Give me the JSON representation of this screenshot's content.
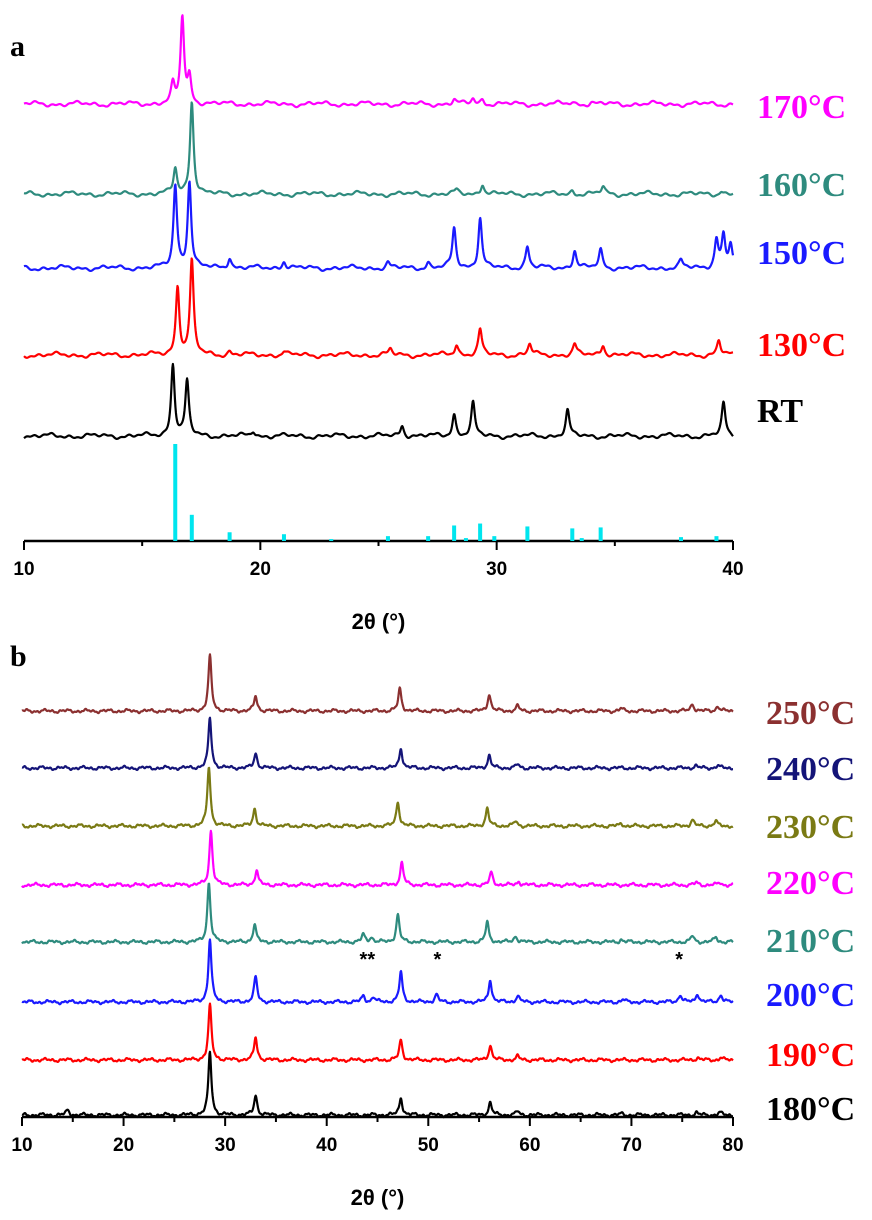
{
  "chart_data": [
    {
      "type": "line",
      "panel": "a",
      "xlabel": "2θ (°)",
      "xlim": [
        10,
        40
      ],
      "xticks": [
        10,
        20,
        30,
        40
      ],
      "yaxis": "none (stacked offset patterns)",
      "series": [
        {
          "name": "170°C",
          "color": "#ff00ff",
          "peaks": [
            [
              16.3,
              0.5
            ],
            [
              16.7,
              2.4
            ],
            [
              17.0,
              0.7
            ],
            [
              28.2,
              0.12
            ],
            [
              29.0,
              0.15
            ],
            [
              29.4,
              0.13
            ],
            [
              33.2,
              0.06
            ],
            [
              34.0,
              0.05
            ]
          ]
        },
        {
          "name": "160°C",
          "color": "#2e8b7e",
          "peaks": [
            [
              16.4,
              0.7
            ],
            [
              17.1,
              2.6
            ],
            [
              28.3,
              0.1
            ],
            [
              29.4,
              0.3
            ],
            [
              33.2,
              0.1
            ],
            [
              34.5,
              0.2
            ],
            [
              39.5,
              0.1
            ]
          ]
        },
        {
          "name": "150°C",
          "color": "#1a1aff",
          "peaks": [
            [
              16.4,
              2.3
            ],
            [
              17.0,
              2.4
            ],
            [
              18.7,
              0.3
            ],
            [
              21.0,
              0.2
            ],
            [
              25.4,
              0.15
            ],
            [
              27.1,
              0.15
            ],
            [
              28.2,
              1.1
            ],
            [
              29.3,
              1.4
            ],
            [
              31.3,
              0.6
            ],
            [
              33.3,
              0.5
            ],
            [
              34.4,
              0.5
            ],
            [
              37.8,
              0.2
            ],
            [
              39.3,
              0.8
            ],
            [
              39.6,
              0.9
            ],
            [
              39.9,
              0.6
            ]
          ]
        },
        {
          "name": "130°C",
          "color": "#ff0000",
          "peaks": [
            [
              16.5,
              1.9
            ],
            [
              17.1,
              2.6
            ],
            [
              18.7,
              0.1
            ],
            [
              21.0,
              0.1
            ],
            [
              25.5,
              0.15
            ],
            [
              28.3,
              0.3
            ],
            [
              29.3,
              0.7
            ],
            [
              31.4,
              0.3
            ],
            [
              33.3,
              0.3
            ],
            [
              34.5,
              0.3
            ],
            [
              39.4,
              0.4
            ]
          ]
        },
        {
          "name": "RT",
          "color": "#000000",
          "peaks": [
            [
              16.3,
              2.0
            ],
            [
              16.9,
              1.5
            ],
            [
              19.7,
              0.15
            ],
            [
              26.0,
              0.3
            ],
            [
              28.2,
              0.6
            ],
            [
              29.0,
              0.9
            ],
            [
              33.0,
              0.7
            ],
            [
              39.6,
              0.9
            ]
          ]
        }
      ],
      "reference_sticks": {
        "color": "#00e5ee",
        "positions": [
          16.4,
          17.1,
          18.7,
          21.0,
          23.0,
          25.4,
          27.1,
          28.2,
          28.7,
          29.3,
          29.9,
          31.3,
          33.2,
          33.6,
          34.4,
          37.8,
          39.3
        ],
        "heights": [
          1.0,
          0.27,
          0.09,
          0.07,
          0.02,
          0.05,
          0.05,
          0.16,
          0.03,
          0.18,
          0.05,
          0.15,
          0.13,
          0.03,
          0.14,
          0.04,
          0.05
        ]
      }
    },
    {
      "type": "line",
      "panel": "b",
      "xlabel": "2θ (°)",
      "xlim": [
        10,
        80
      ],
      "xticks": [
        10,
        20,
        30,
        40,
        50,
        60,
        70,
        80
      ],
      "yaxis": "none (stacked offset patterns)",
      "series": [
        {
          "name": "250°C",
          "color": "#8b3030",
          "peaks": [
            [
              28.5,
              2.2
            ],
            [
              33.0,
              0.6
            ],
            [
              47.2,
              0.9
            ],
            [
              56.0,
              0.7
            ],
            [
              58.8,
              0.2
            ],
            [
              69.0,
              0.1
            ],
            [
              76.0,
              0.3
            ],
            [
              78.5,
              0.2
            ]
          ]
        },
        {
          "name": "240°C",
          "color": "#141478",
          "peaks": [
            [
              28.5,
              2.0
            ],
            [
              33.0,
              0.6
            ],
            [
              47.3,
              0.8
            ],
            [
              56.0,
              0.5
            ],
            [
              58.8,
              0.15
            ],
            [
              76.3,
              0.1
            ],
            [
              78.5,
              0.1
            ]
          ]
        },
        {
          "name": "230°C",
          "color": "#7a7a14",
          "peaks": [
            [
              28.4,
              2.4
            ],
            [
              32.9,
              0.7
            ],
            [
              47.0,
              1.0
            ],
            [
              55.8,
              0.7
            ],
            [
              58.6,
              0.2
            ],
            [
              69.0,
              0.1
            ],
            [
              76.0,
              0.25
            ],
            [
              78.3,
              0.2
            ]
          ]
        },
        {
          "name": "220°C",
          "color": "#ff00ff",
          "peaks": [
            [
              28.6,
              2.2
            ],
            [
              33.1,
              0.6
            ],
            [
              47.4,
              0.9
            ],
            [
              56.2,
              0.5
            ],
            [
              58.9,
              0.15
            ],
            [
              76.4,
              0.1
            ],
            [
              78.7,
              0.1
            ]
          ]
        },
        {
          "name": "210°C",
          "color": "#2e8b7e",
          "peaks": [
            [
              28.4,
              2.4
            ],
            [
              32.9,
              0.7
            ],
            [
              43.6,
              0.3
            ],
            [
              44.4,
              0.2
            ],
            [
              47.0,
              1.1
            ],
            [
              55.8,
              0.8
            ],
            [
              58.6,
              0.25
            ],
            [
              69.0,
              0.1
            ],
            [
              76.0,
              0.25
            ],
            [
              78.3,
              0.2
            ]
          ]
        },
        {
          "name": "200°C",
          "color": "#1a1aff",
          "peaks": [
            [
              28.5,
              2.5
            ],
            [
              33.0,
              1.0
            ],
            [
              43.6,
              0.25
            ],
            [
              44.6,
              0.2
            ],
            [
              47.3,
              1.2
            ],
            [
              50.8,
              0.3
            ],
            [
              56.1,
              0.9
            ],
            [
              58.8,
              0.25
            ],
            [
              69.2,
              0.1
            ],
            [
              74.8,
              0.3
            ],
            [
              76.5,
              0.35
            ],
            [
              78.8,
              0.3
            ]
          ]
        },
        {
          "name": "190°C",
          "color": "#ff0000",
          "peaks": [
            [
              28.5,
              2.2
            ],
            [
              33.0,
              0.9
            ],
            [
              47.3,
              0.8
            ],
            [
              56.1,
              0.6
            ],
            [
              58.8,
              0.15
            ],
            [
              76.5,
              0.1
            ],
            [
              78.8,
              0.1
            ]
          ]
        },
        {
          "name": "180°C",
          "color": "#000000",
          "peaks": [
            [
              14.5,
              0.2
            ],
            [
              28.5,
              2.5
            ],
            [
              33.0,
              0.8
            ],
            [
              47.3,
              0.7
            ],
            [
              56.1,
              0.5
            ],
            [
              58.8,
              0.15
            ],
            [
              69.0,
              0.05
            ],
            [
              76.4,
              0.1
            ],
            [
              78.7,
              0.1
            ]
          ]
        }
      ],
      "annotations": [
        {
          "text": "**",
          "x": 44.0,
          "series": "200°C"
        },
        {
          "text": "*",
          "x": 50.9,
          "series": "200°C"
        },
        {
          "text": "*",
          "x": 74.7,
          "series": "200°C"
        }
      ]
    }
  ],
  "figure": {
    "panel_a_letter": "a",
    "panel_b_letter": "b"
  }
}
